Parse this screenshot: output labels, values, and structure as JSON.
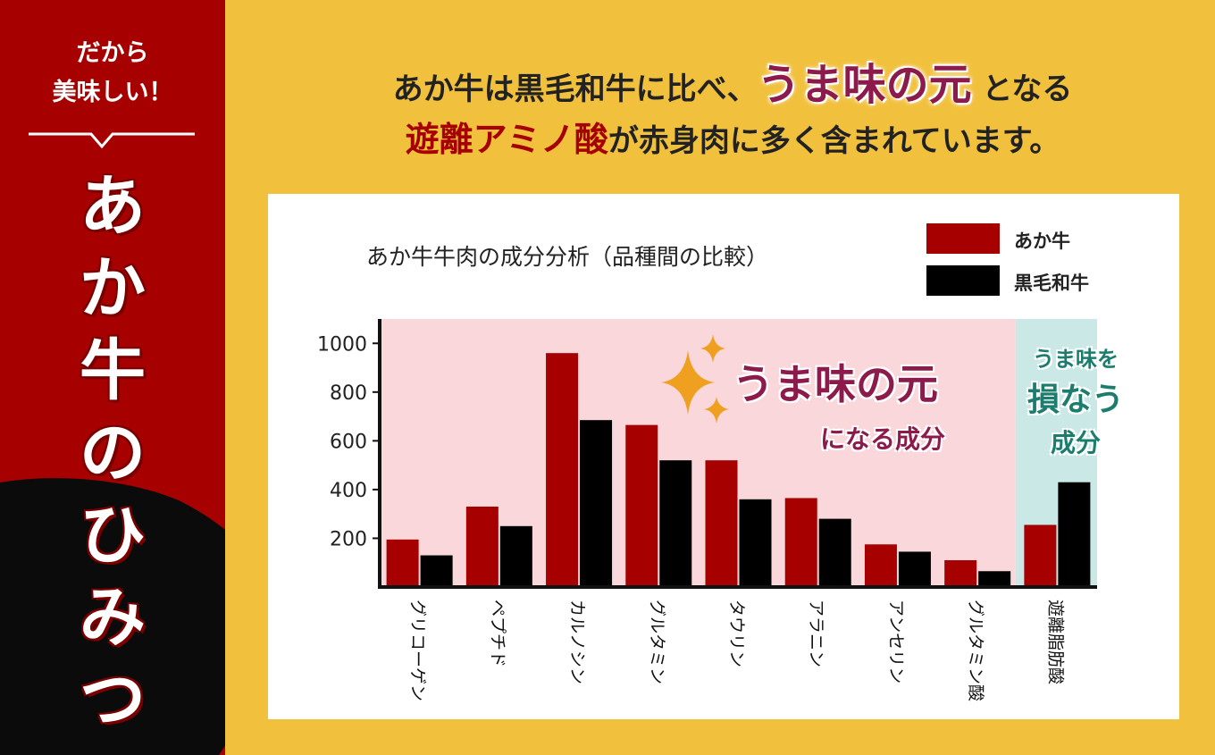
{
  "sidebar": {
    "tag_line1": "だから",
    "tag_line2": "美味しい！",
    "title_chars": [
      "あ",
      "か",
      "牛",
      "の",
      "ひ",
      "み",
      "つ"
    ]
  },
  "headline": {
    "line1_pre": "あか牛は黒毛和牛に比べ、",
    "line1_highlight": "うま味の元",
    "line1_post": " となる",
    "line2_highlight": "遊離アミノ酸",
    "line2_post": "が赤身肉に多く含まれています。"
  },
  "annotations": {
    "umami_main": "うま味の元",
    "umami_sub": "になる成分",
    "harm_line1": "うま味を",
    "harm_line2": "損なう",
    "harm_line3": "成分"
  },
  "colors": {
    "background": "#F1C13E",
    "sidebar": "#A60000",
    "akaushi": "#A60000",
    "kuroge": "#000000",
    "umami_zone": "#F9D7DA",
    "harm_zone": "#C9E8E6",
    "accent_text": "#8C1A4A",
    "teal_text": "#1C7D6E",
    "sparkle": "#F0A021"
  },
  "chart_data": {
    "type": "bar",
    "title": "あか牛牛肉の成分分析（品種間の比較）",
    "categories": [
      "グリコーゲン",
      "ペプチド",
      "カルノシン",
      "グルタミン",
      "タウリン",
      "アラニン",
      "アンセリン",
      "グルタミン酸",
      "遊離脂肪酸"
    ],
    "series": [
      {
        "name": "あか牛",
        "color": "#A60000",
        "values": [
          195,
          330,
          960,
          665,
          520,
          365,
          175,
          110,
          255
        ]
      },
      {
        "name": "黒毛和牛",
        "color": "#000000",
        "values": [
          130,
          250,
          685,
          520,
          360,
          280,
          145,
          65,
          430
        ]
      }
    ],
    "y_ticks": [
      200,
      400,
      600,
      800,
      1000
    ],
    "ylim": [
      0,
      1100
    ],
    "legend_position": "top-right",
    "grid": false
  }
}
